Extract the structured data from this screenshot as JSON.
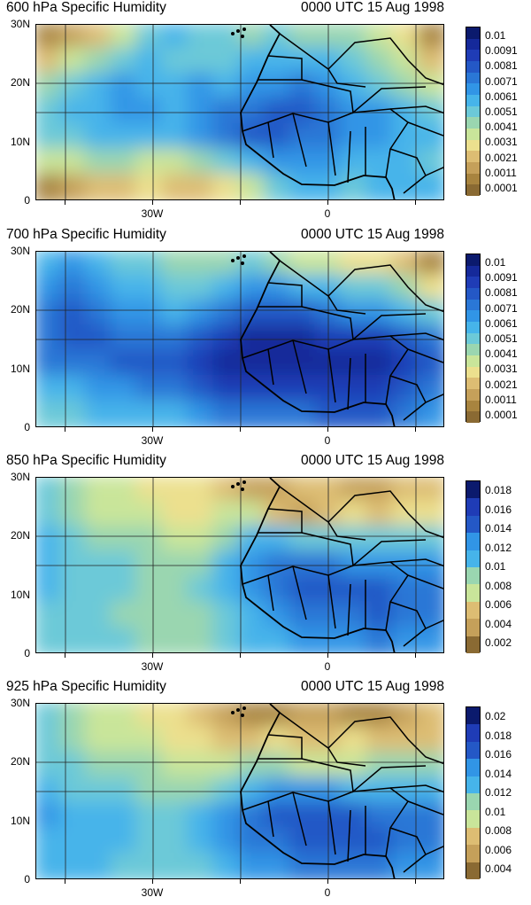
{
  "palette": [
    "#8a6a33",
    "#a8843f",
    "#c5a05a",
    "#ddbd73",
    "#ece08e",
    "#c9e59a",
    "#9ad6b0",
    "#6cc9d8",
    "#46b4ea",
    "#3195e6",
    "#2a77d6",
    "#2458c6",
    "#1f3cb6",
    "#15299a",
    "#0b1a6d"
  ],
  "panels": [
    {
      "title_left": "600 hPa Specific Humidity",
      "title_right": "0000 UTC 15 Aug 1998",
      "y_labels": [
        "30N",
        "20N",
        "10N",
        "0"
      ],
      "x_labels": [
        "30W",
        "0"
      ],
      "colorbar_labels": [
        "0.01",
        "0.0091",
        "0.0081",
        "0.0071",
        "0.0061",
        "0.0051",
        "0.0041",
        "0.0031",
        "0.0021",
        "0.0011",
        "0.0001"
      ],
      "levels": [
        0.0001,
        0.0011,
        0.0021,
        0.0031,
        0.0041,
        0.0051,
        0.0061,
        0.0071,
        0.0081,
        0.0091,
        0.01
      ],
      "humidity": [
        [
          1,
          2,
          3,
          5,
          7,
          8,
          7,
          7,
          6,
          7,
          6,
          6,
          6,
          5,
          4,
          1
        ],
        [
          3,
          5,
          6,
          7,
          8,
          7,
          7,
          7,
          8,
          8,
          8,
          8,
          7,
          6,
          5,
          3
        ],
        [
          6,
          7,
          8,
          9,
          8,
          8,
          9,
          8,
          9,
          9,
          10,
          9,
          8,
          7,
          6,
          5
        ],
        [
          7,
          8,
          8,
          9,
          9,
          8,
          9,
          10,
          10,
          11,
          11,
          10,
          9,
          9,
          8,
          7
        ],
        [
          7,
          7,
          8,
          8,
          8,
          8,
          9,
          10,
          11,
          11,
          10,
          10,
          9,
          9,
          8,
          8
        ],
        [
          5,
          5,
          6,
          6,
          5,
          5,
          6,
          7,
          8,
          9,
          9,
          9,
          8,
          8,
          8,
          7
        ],
        [
          1,
          2,
          3,
          3,
          4,
          3,
          3,
          4,
          5,
          7,
          8,
          8,
          7,
          8,
          8,
          8
        ]
      ]
    },
    {
      "title_left": "700 hPa Specific Humidity",
      "title_right": "0000 UTC 15 Aug 1998",
      "y_labels": [
        "30N",
        "20N",
        "10N",
        "0"
      ],
      "x_labels": [
        "30W",
        "0"
      ],
      "colorbar_labels": [
        "0.01",
        "0.0091",
        "0.0081",
        "0.0071",
        "0.0061",
        "0.0051",
        "0.0041",
        "0.0031",
        "0.0021",
        "0.0011",
        "0.0001"
      ],
      "levels": [
        0.0001,
        0.0011,
        0.0021,
        0.0031,
        0.0041,
        0.0051,
        0.0061,
        0.0071,
        0.0081,
        0.0091,
        0.01
      ],
      "humidity": [
        [
          8,
          9,
          8,
          7,
          7,
          6,
          6,
          6,
          7,
          6,
          5,
          5,
          4,
          4,
          3,
          1
        ],
        [
          9,
          10,
          9,
          8,
          8,
          7,
          7,
          8,
          9,
          9,
          8,
          8,
          7,
          7,
          6,
          4
        ],
        [
          10,
          11,
          10,
          9,
          9,
          8,
          9,
          10,
          11,
          11,
          11,
          10,
          9,
          9,
          8,
          7
        ],
        [
          10,
          11,
          11,
          10,
          10,
          10,
          11,
          12,
          13,
          13,
          13,
          12,
          12,
          12,
          11,
          10
        ],
        [
          10,
          10,
          10,
          11,
          11,
          11,
          12,
          13,
          13,
          13,
          13,
          13,
          13,
          13,
          12,
          11
        ],
        [
          8,
          8,
          9,
          9,
          10,
          10,
          11,
          12,
          12,
          12,
          12,
          12,
          12,
          12,
          11,
          10
        ],
        [
          7,
          7,
          8,
          8,
          8,
          8,
          9,
          10,
          10,
          10,
          10,
          11,
          11,
          11,
          10,
          9
        ]
      ]
    },
    {
      "title_left": "850 hPa Specific Humidity",
      "title_right": "0000 UTC 15 Aug 1998",
      "y_labels": [
        "30N",
        "20N",
        "10N",
        "0"
      ],
      "x_labels": [
        "30W",
        "0"
      ],
      "colorbar_labels": [
        "0.018",
        "0.016",
        "0.014",
        "0.012",
        "0.01",
        "0.008",
        "0.006",
        "0.004",
        "0.002"
      ],
      "levels": [
        0.002,
        0.004,
        0.006,
        0.008,
        0.01,
        0.012,
        0.014,
        0.016,
        0.018
      ],
      "humidity": [
        [
          7,
          6,
          5,
          5,
          4,
          4,
          4,
          3,
          2,
          2,
          3,
          3,
          2,
          2,
          3,
          3
        ],
        [
          7,
          6,
          5,
          5,
          5,
          4,
          4,
          5,
          5,
          3,
          2,
          3,
          4,
          3,
          4,
          4
        ],
        [
          8,
          7,
          6,
          6,
          6,
          5,
          5,
          6,
          8,
          8,
          7,
          7,
          7,
          7,
          7,
          7
        ],
        [
          8,
          7,
          7,
          7,
          6,
          6,
          6,
          8,
          9,
          10,
          10,
          10,
          9,
          9,
          9,
          9
        ],
        [
          8,
          7,
          7,
          7,
          6,
          6,
          7,
          8,
          9,
          10,
          11,
          11,
          11,
          11,
          10,
          10
        ],
        [
          7,
          7,
          7,
          6,
          6,
          6,
          6,
          7,
          8,
          9,
          10,
          10,
          10,
          11,
          10,
          10
        ],
        [
          7,
          7,
          7,
          7,
          6,
          6,
          6,
          7,
          8,
          8,
          9,
          9,
          9,
          10,
          9,
          9
        ]
      ]
    },
    {
      "title_left": "925 hPa Specific Humidity",
      "title_right": "0000 UTC 15 Aug 1998",
      "y_labels": [
        "30N",
        "20N",
        "10N",
        "0"
      ],
      "x_labels": [
        "30W",
        "0"
      ],
      "colorbar_labels": [
        "0.02",
        "0.018",
        "0.016",
        "0.014",
        "0.012",
        "0.01",
        "0.008",
        "0.006",
        "0.004"
      ],
      "levels": [
        0.004,
        0.006,
        0.008,
        0.01,
        0.012,
        0.014,
        0.016,
        0.018,
        0.02
      ],
      "humidity": [
        [
          7,
          6,
          5,
          5,
          4,
          4,
          3,
          2,
          1,
          1,
          2,
          2,
          1,
          1,
          2,
          3
        ],
        [
          7,
          6,
          5,
          5,
          5,
          4,
          4,
          3,
          3,
          4,
          3,
          3,
          4,
          3,
          3,
          3
        ],
        [
          7,
          7,
          6,
          6,
          6,
          5,
          5,
          5,
          6,
          6,
          5,
          5,
          5,
          6,
          6,
          6
        ],
        [
          8,
          7,
          7,
          7,
          6,
          6,
          6,
          7,
          8,
          9,
          9,
          9,
          8,
          8,
          8,
          8
        ],
        [
          9,
          8,
          8,
          8,
          7,
          7,
          8,
          9,
          10,
          11,
          11,
          11,
          11,
          10,
          10,
          10
        ],
        [
          8,
          8,
          8,
          8,
          7,
          7,
          8,
          9,
          10,
          10,
          11,
          11,
          11,
          11,
          10,
          10
        ],
        [
          8,
          8,
          8,
          7,
          7,
          7,
          7,
          8,
          9,
          9,
          10,
          10,
          10,
          10,
          9,
          9
        ]
      ]
    }
  ]
}
